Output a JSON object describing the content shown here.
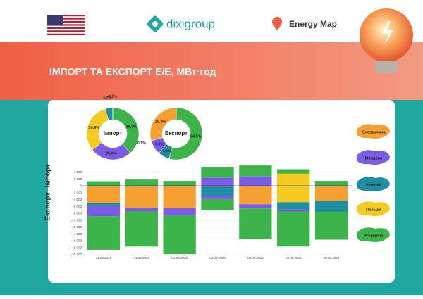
{
  "header": {
    "logo": "dixigroup",
    "energy_map": "Energy Map",
    "title": "ІМПОРТ ТА ЕКСПОРТ Е/Е, МВт·год"
  },
  "chart_data": [
    {
      "type": "pie",
      "center_label": "Імпорт",
      "values": [
        38.3,
        26.0,
        30.9,
        4.7,
        0.1
      ],
      "value_labels": [
        "38,3%",
        "26,0%",
        "30,9%",
        "4,7%",
        "0,1%"
      ],
      "colors": [
        "#3cb44a",
        "#7b5ce6",
        "#f5cb1f",
        "#1e8fa3",
        "#f7a032"
      ]
    },
    {
      "type": "pie",
      "center_label": "Експорт",
      "values": [
        54.5,
        7.2,
        9.0,
        0.1,
        29.3
      ],
      "value_labels": [
        "54,5%",
        "7,2%",
        "9,0%",
        "0,1%",
        "29,3%"
      ],
      "colors": [
        "#3cb44a",
        "#1e8fa3",
        "#7b5ce6",
        "#f5cb1f",
        "#f7a032"
      ]
    },
    {
      "type": "bar",
      "y_label_import": "Імпорт",
      "y_label_export": "Експорт",
      "categories": [
        "31.05.2026",
        "01.06.2026",
        "02.06.2026",
        "03.06.2026",
        "04.06.2026",
        "05.06.2026",
        "06.06.2026"
      ],
      "ylim": [
        -20000,
        5000
      ],
      "yticks": [
        {
          "value": 4000,
          "label": "4 000"
        },
        {
          "value": 2000,
          "label": "2 000"
        },
        0,
        {
          "value": -2000,
          "label": "-2 000"
        },
        {
          "value": -4000,
          "label": "-4 000"
        },
        {
          "value": -6000,
          "label": "-6 000"
        },
        {
          "value": -8000,
          "label": "-8 000"
        },
        {
          "value": -10000,
          "label": "-10 000"
        },
        {
          "value": -12000,
          "label": "-12 000"
        },
        {
          "value": -14000,
          "label": "-14 000"
        },
        {
          "value": -16000,
          "label": "-16 000"
        },
        {
          "value": -18000,
          "label": "-18 000"
        },
        {
          "value": -20000,
          "label": "-20 000"
        }
      ],
      "series": [
        {
          "name": "Польща",
          "color": "#f5cb1f",
          "import": [
            0,
            0,
            0,
            0,
            0,
            3600,
            0
          ],
          "export": [
            0,
            0,
            0,
            0,
            0,
            -4700,
            0
          ]
        },
        {
          "name": "Словаччина",
          "color": "#f7a032",
          "import": [
            0,
            0,
            0,
            0,
            0,
            0,
            0
          ],
          "export": [
            -4900,
            -6400,
            -6400,
            0,
            -5300,
            0,
            -4300
          ]
        },
        {
          "name": "Румунія",
          "color": "#1e8fa3",
          "import": [
            0,
            0,
            0,
            0,
            0,
            0,
            0
          ],
          "export": [
            -850,
            0,
            0,
            -2800,
            0,
            -2100,
            -3200
          ]
        },
        {
          "name": "Молдова",
          "color": "#7b5ce6",
          "import": [
            0,
            0,
            0,
            2500,
            2800,
            0,
            0
          ],
          "export": [
            -3000,
            -1000,
            -2100,
            -1000,
            -1200,
            -600,
            0
          ]
        },
        {
          "name": "Угорщина",
          "color": "#3cb44a",
          "import": [
            1400,
            1900,
            1500,
            3000,
            3200,
            1300,
            1500
          ],
          "export": [
            -9800,
            -10200,
            -11300,
            -3200,
            -9000,
            -10200,
            -8100
          ]
        }
      ]
    }
  ]
}
